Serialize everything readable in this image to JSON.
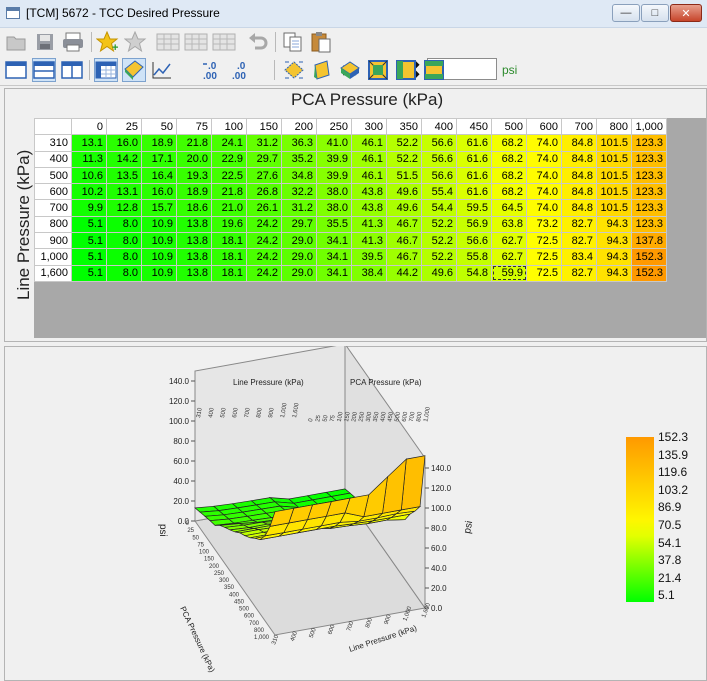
{
  "window": {
    "title": "[TCM] 5672 - TCC Desired Pressure"
  },
  "toolbar": {
    "op_value": "",
    "op_unit": "psi"
  },
  "table": {
    "x_title": "PCA Pressure (kPa)",
    "y_title": "Line Pressure (kPa)",
    "x_headers": [
      "0",
      "25",
      "50",
      "75",
      "100",
      "150",
      "200",
      "250",
      "300",
      "350",
      "400",
      "450",
      "500",
      "600",
      "700",
      "800",
      "1,000"
    ],
    "rows": [
      {
        "y": "310",
        "v": [
          "13.1",
          "16.0",
          "18.9",
          "21.8",
          "24.1",
          "31.2",
          "36.3",
          "41.0",
          "46.1",
          "52.2",
          "56.6",
          "61.6",
          "68.2",
          "74.0",
          "84.8",
          "101.5",
          "123.3"
        ]
      },
      {
        "y": "400",
        "v": [
          "11.3",
          "14.2",
          "17.1",
          "20.0",
          "22.9",
          "29.7",
          "35.2",
          "39.9",
          "46.1",
          "52.2",
          "56.6",
          "61.6",
          "68.2",
          "74.0",
          "84.8",
          "101.5",
          "123.3"
        ]
      },
      {
        "y": "500",
        "v": [
          "10.6",
          "13.5",
          "16.4",
          "19.3",
          "22.5",
          "27.6",
          "34.8",
          "39.9",
          "46.1",
          "51.5",
          "56.6",
          "61.6",
          "68.2",
          "74.0",
          "84.8",
          "101.5",
          "123.3"
        ]
      },
      {
        "y": "600",
        "v": [
          "10.2",
          "13.1",
          "16.0",
          "18.9",
          "21.8",
          "26.8",
          "32.2",
          "38.0",
          "43.8",
          "49.6",
          "55.4",
          "61.6",
          "68.2",
          "74.0",
          "84.8",
          "101.5",
          "123.3"
        ]
      },
      {
        "y": "700",
        "v": [
          "9.9",
          "12.8",
          "15.7",
          "18.6",
          "21.0",
          "26.1",
          "31.2",
          "38.0",
          "43.8",
          "49.6",
          "54.4",
          "59.5",
          "64.5",
          "74.0",
          "84.8",
          "101.5",
          "123.3"
        ]
      },
      {
        "y": "800",
        "v": [
          "5.1",
          "8.0",
          "10.9",
          "13.8",
          "19.6",
          "24.2",
          "29.7",
          "35.5",
          "41.3",
          "46.7",
          "52.2",
          "56.9",
          "63.8",
          "73.2",
          "82.7",
          "94.3",
          "123.3"
        ]
      },
      {
        "y": "900",
        "v": [
          "5.1",
          "8.0",
          "10.9",
          "13.8",
          "18.1",
          "24.2",
          "29.0",
          "34.1",
          "41.3",
          "46.7",
          "52.2",
          "56.6",
          "62.7",
          "72.5",
          "82.7",
          "94.3",
          "137.8"
        ]
      },
      {
        "y": "1,000",
        "v": [
          "5.1",
          "8.0",
          "10.9",
          "13.8",
          "18.1",
          "24.2",
          "29.0",
          "34.1",
          "39.5",
          "46.7",
          "52.2",
          "55.8",
          "62.7",
          "72.5",
          "83.4",
          "94.3",
          "152.3"
        ]
      },
      {
        "y": "1,600",
        "v": [
          "5.1",
          "8.0",
          "10.9",
          "13.8",
          "18.1",
          "24.2",
          "29.0",
          "34.1",
          "38.4",
          "44.2",
          "49.6",
          "54.8",
          "59.9",
          "72.5",
          "82.7",
          "94.3",
          "152.3"
        ]
      }
    ],
    "selected": {
      "row": 8,
      "col": 12
    }
  },
  "graph": {
    "axis_left_label": "Line Pressure (kPa)",
    "axis_right_label": "PCA Pressure (kPa)",
    "z_label": "psi",
    "z_label_right": "psi",
    "front_left_label": "PCA Pressure (kPa)",
    "front_right_label": "Line Pressure (kPa)",
    "z_ticks": [
      "0.0",
      "20.0",
      "40.0",
      "60.0",
      "80.0",
      "100.0",
      "120.0",
      "140.0"
    ],
    "legend": [
      "152.3",
      "135.9",
      "119.6",
      "103.2",
      "86.9",
      "70.5",
      "54.1",
      "37.8",
      "21.4",
      "5.1"
    ]
  },
  "colors": {
    "low": "#00ff00",
    "mid": "#ffff00",
    "high": "#ff9900"
  }
}
